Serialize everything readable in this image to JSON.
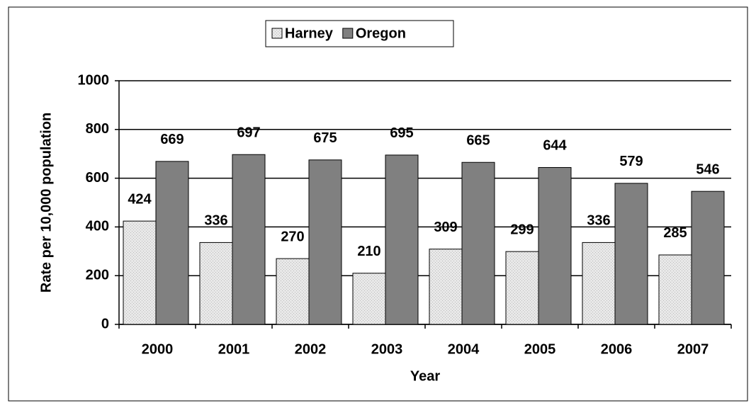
{
  "chart_data": {
    "type": "bar",
    "x_label": "Year",
    "y_label": "Rate per 10,000 population",
    "categories": [
      "2000",
      "2001",
      "2002",
      "2003",
      "2004",
      "2005",
      "2006",
      "2007"
    ],
    "series": [
      {
        "name": "Harney",
        "color": "#e4e4e4",
        "values": [
          424,
          336,
          270,
          210,
          309,
          299,
          336,
          285
        ]
      },
      {
        "name": "Oregon",
        "color": "#808080",
        "values": [
          669,
          697,
          675,
          695,
          665,
          644,
          579,
          546
        ]
      }
    ],
    "ylim": [
      0,
      1000
    ],
    "yticks": [
      0,
      200,
      400,
      600,
      800,
      1000
    ],
    "grid": true
  }
}
